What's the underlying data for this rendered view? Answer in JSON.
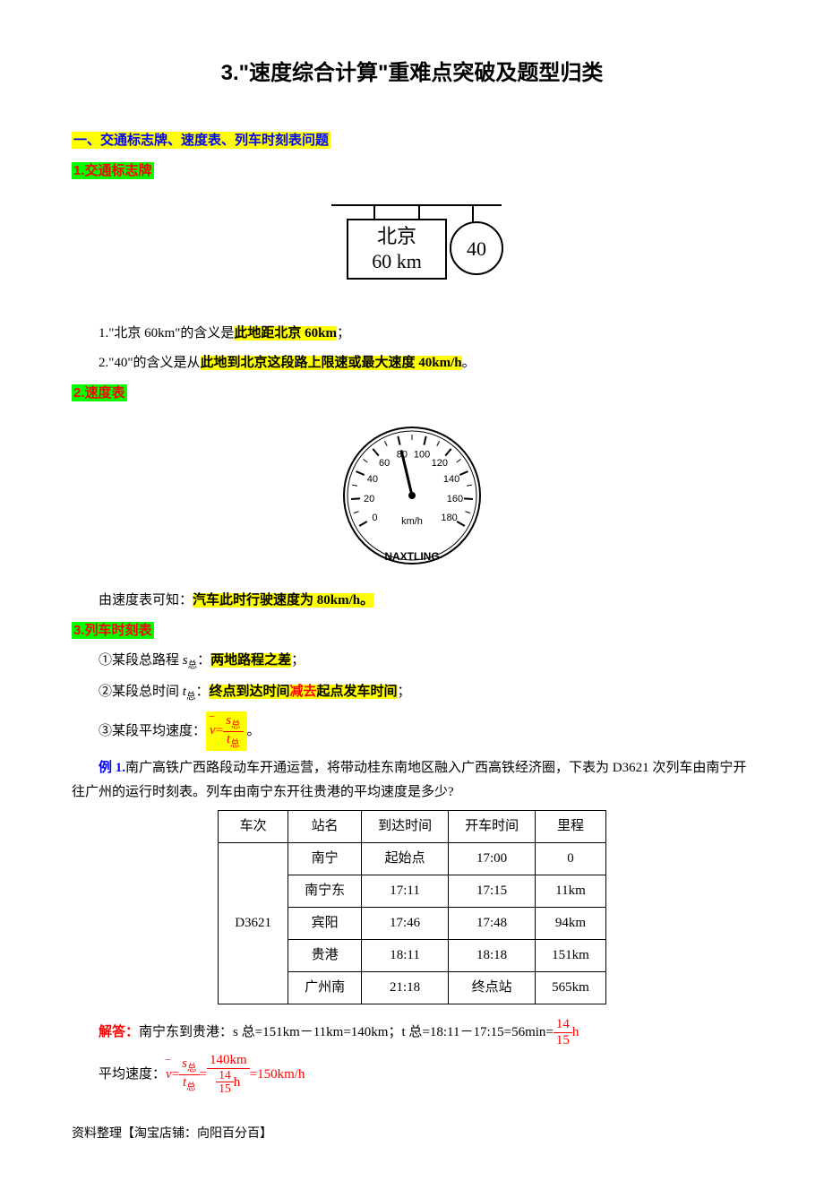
{
  "title": "3.\"速度综合计算\"重难点突破及题型归类",
  "section1": {
    "header": "一、交通标志牌、速度表、列车时刻表问题",
    "sub1": "1.交通标志牌",
    "sub2": "2.速度表",
    "sub3": "3.列车时刻表"
  },
  "sign": {
    "line1": "北京",
    "line2": "60 km",
    "circle": "40"
  },
  "p1_pre": "1.\"北京 60km\"的含义是",
  "p1_hl": "此地距北京 60km",
  "p1_post": "；",
  "p2_pre": "2.\"40\"的含义是从",
  "p2_hl": "此地到北京这段路上限速或最大速度 40km/h",
  "p2_post": "。",
  "speedometer": {
    "ticks": [
      "0",
      "20",
      "40",
      "60",
      "80",
      "100",
      "120",
      "140",
      "160",
      "180"
    ],
    "unit": "km/h",
    "brand": "NAXTLING",
    "needle_value": 80
  },
  "p3_pre": "由速度表可知：",
  "p3_hl": "汽车此时行驶速度为 80km/h。",
  "rule1_pre": "①某段总路程 ",
  "rule1_sym": "s",
  "rule1_sub": "总",
  "rule1_mid": "：",
  "rule1_hl": "两地路程之差",
  "rule1_post": "；",
  "rule2_pre": "②某段总时间 ",
  "rule2_sym": "t",
  "rule2_sub": "总",
  "rule2_mid": "：",
  "rule2_hl_a": "终点到达时间",
  "rule2_hl_b": "减去",
  "rule2_hl_c": "起点发车时间",
  "rule2_post": "；",
  "rule3_pre": "③某段平均速度：",
  "rule3_post": "。",
  "formula": {
    "vbar": "v",
    "s": "s",
    "t": "t",
    "sub": "总"
  },
  "example_label": "例 1.",
  "example_text": "南广高铁广西路段动车开通运营，将带动桂东南地区融入广西高铁经济圈，下表为 D3621 次列车由南宁开往广州的运行时刻表。列车由南宁东开往贵港的平均速度是多少?",
  "table": {
    "columns": [
      "车次",
      "站名",
      "到达时间",
      "开车时间",
      "里程"
    ],
    "train": "D3621",
    "rows": [
      [
        "南宁",
        "起始点",
        "17:00",
        "0"
      ],
      [
        "南宁东",
        "17:11",
        "17:15",
        "11km"
      ],
      [
        "宾阳",
        "17:46",
        "17:48",
        "94km"
      ],
      [
        "贵港",
        "18:11",
        "18:18",
        "151km"
      ],
      [
        "广州南",
        "21:18",
        "终点站",
        "565km"
      ]
    ]
  },
  "answer_label": "解答：",
  "answer_s": "南宁东到贵港：s 总=151km－11km=140km；t 总=18:11－17:15=56min=",
  "answer_frac_num": "14",
  "answer_frac_den": "15",
  "answer_frac_unit": "h",
  "avg_label": "平均速度：",
  "avg_val_num": "140km",
  "avg_val_den_num": "14",
  "avg_val_den_den": "15",
  "avg_val_den_unit": "h",
  "avg_result": "=150km/h",
  "footer": "资料整理【淘宝店铺：向阳百分百】"
}
